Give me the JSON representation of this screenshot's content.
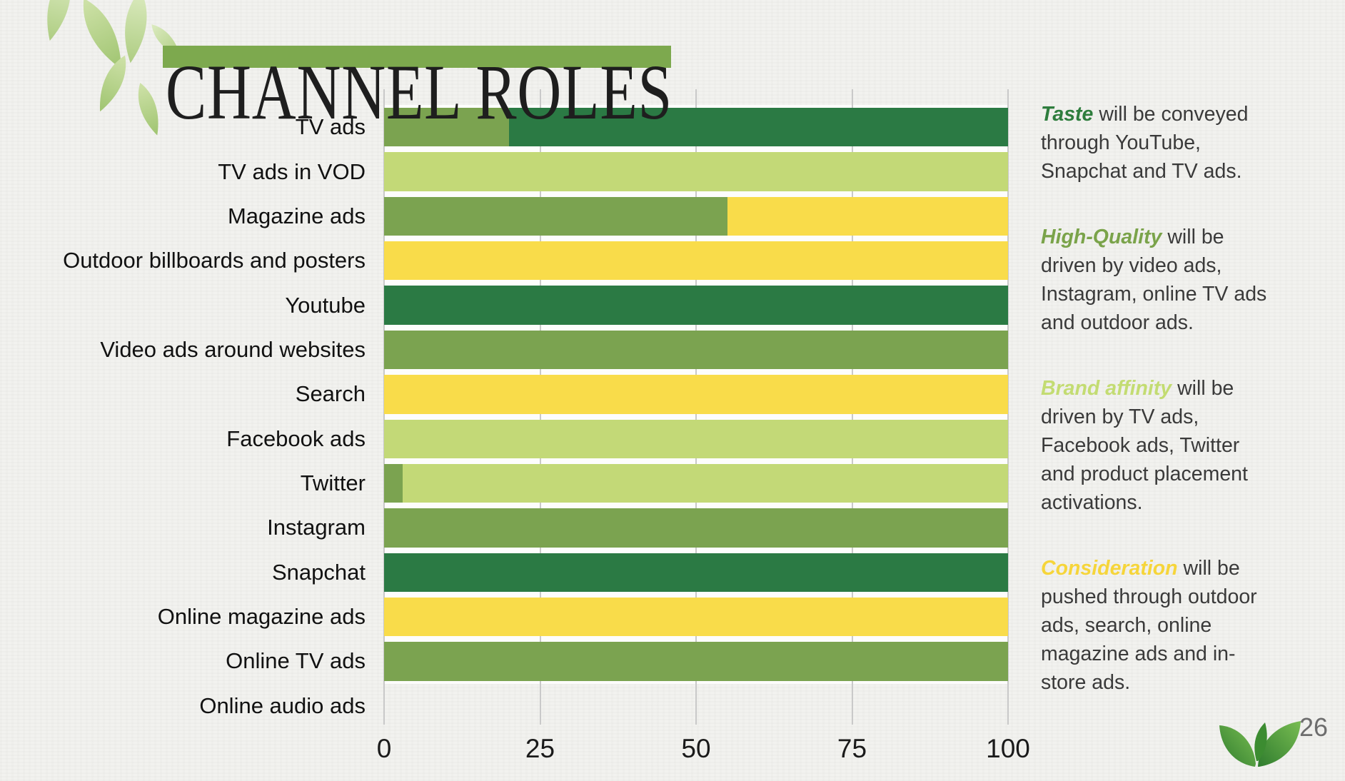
{
  "slide": {
    "title": "CHANNEL ROLES",
    "page_number": "26"
  },
  "decorations": {
    "top_left": "leaves-decoration",
    "bottom_right": "tea-leaf-logo"
  },
  "colors": {
    "title_underline": "#7da94e",
    "background": "#f2f2ef",
    "body_text": "#3a3a3a",
    "gridline": "#c9c9c9"
  },
  "chart_data": {
    "type": "bar",
    "orientation": "horizontal",
    "stacked": true,
    "title": "",
    "xlabel": "",
    "ylabel": "",
    "xlim": [
      0,
      100
    ],
    "xticks": [
      0,
      25,
      50,
      75,
      100
    ],
    "grid": true,
    "legend": "none",
    "palette": {
      "taste_dark_green": "#2b7a44",
      "high_quality_olive": "#7ba350",
      "brand_affinity_light_green": "#c3d977",
      "consideration_yellow": "#f9dc4a"
    },
    "categories": [
      "TV ads",
      "TV ads in VOD",
      "Magazine ads",
      "Outdoor billboards and posters",
      "Youtube",
      "Video ads around websites",
      "Search",
      "Facebook ads",
      "Twitter",
      "Instagram",
      "Snapchat",
      "Online magazine ads",
      "Online TV ads",
      "Online audio ads"
    ],
    "bars": [
      {
        "category": "TV ads",
        "segments": [
          {
            "color_key": "high_quality_olive",
            "value": 20
          },
          {
            "color_key": "taste_dark_green",
            "value": 80
          }
        ]
      },
      {
        "category": "TV ads in VOD",
        "segments": [
          {
            "color_key": "brand_affinity_light_green",
            "value": 100
          }
        ]
      },
      {
        "category": "Magazine ads",
        "segments": [
          {
            "color_key": "high_quality_olive",
            "value": 55
          },
          {
            "color_key": "consideration_yellow",
            "value": 45
          }
        ]
      },
      {
        "category": "Outdoor billboards and posters",
        "segments": [
          {
            "color_key": "consideration_yellow",
            "value": 100
          }
        ]
      },
      {
        "category": "Youtube",
        "segments": [
          {
            "color_key": "taste_dark_green",
            "value": 100
          }
        ]
      },
      {
        "category": "Video ads around websites",
        "segments": [
          {
            "color_key": "high_quality_olive",
            "value": 100
          }
        ]
      },
      {
        "category": "Search",
        "segments": [
          {
            "color_key": "consideration_yellow",
            "value": 100
          }
        ]
      },
      {
        "category": "Facebook ads",
        "segments": [
          {
            "color_key": "brand_affinity_light_green",
            "value": 100
          }
        ]
      },
      {
        "category": "Twitter",
        "segments": [
          {
            "color_key": "high_quality_olive",
            "value": 3
          },
          {
            "color_key": "brand_affinity_light_green",
            "value": 97
          }
        ]
      },
      {
        "category": "Instagram",
        "segments": [
          {
            "color_key": "high_quality_olive",
            "value": 100
          }
        ]
      },
      {
        "category": "Snapchat",
        "segments": [
          {
            "color_key": "taste_dark_green",
            "value": 100
          }
        ]
      },
      {
        "category": "Online magazine ads",
        "segments": [
          {
            "color_key": "consideration_yellow",
            "value": 100
          }
        ]
      },
      {
        "category": "Online TV ads",
        "segments": [
          {
            "color_key": "high_quality_olive",
            "value": 100
          }
        ]
      },
      {
        "category": "Online audio ads",
        "segments": []
      }
    ]
  },
  "annotations": [
    {
      "lead": "Taste",
      "lead_color": "#2e7d3d",
      "text": " will be conveyed through YouTube, Snapchat and TV ads."
    },
    {
      "lead": "High-Quality",
      "lead_color": "#7aa34a",
      "text": " will be driven by video ads, Instagram, online TV ads and outdoor  ads."
    },
    {
      "lead": "Brand affinity",
      "lead_color": "#c3dc72",
      "text": " will be driven by TV ads, Facebook ads, Twitter and product placement activations."
    },
    {
      "lead": "Consideration",
      "lead_color": "#f6d53a",
      "text": " will be pushed through outdoor ads, search, online magazine ads and in-store ads."
    }
  ]
}
